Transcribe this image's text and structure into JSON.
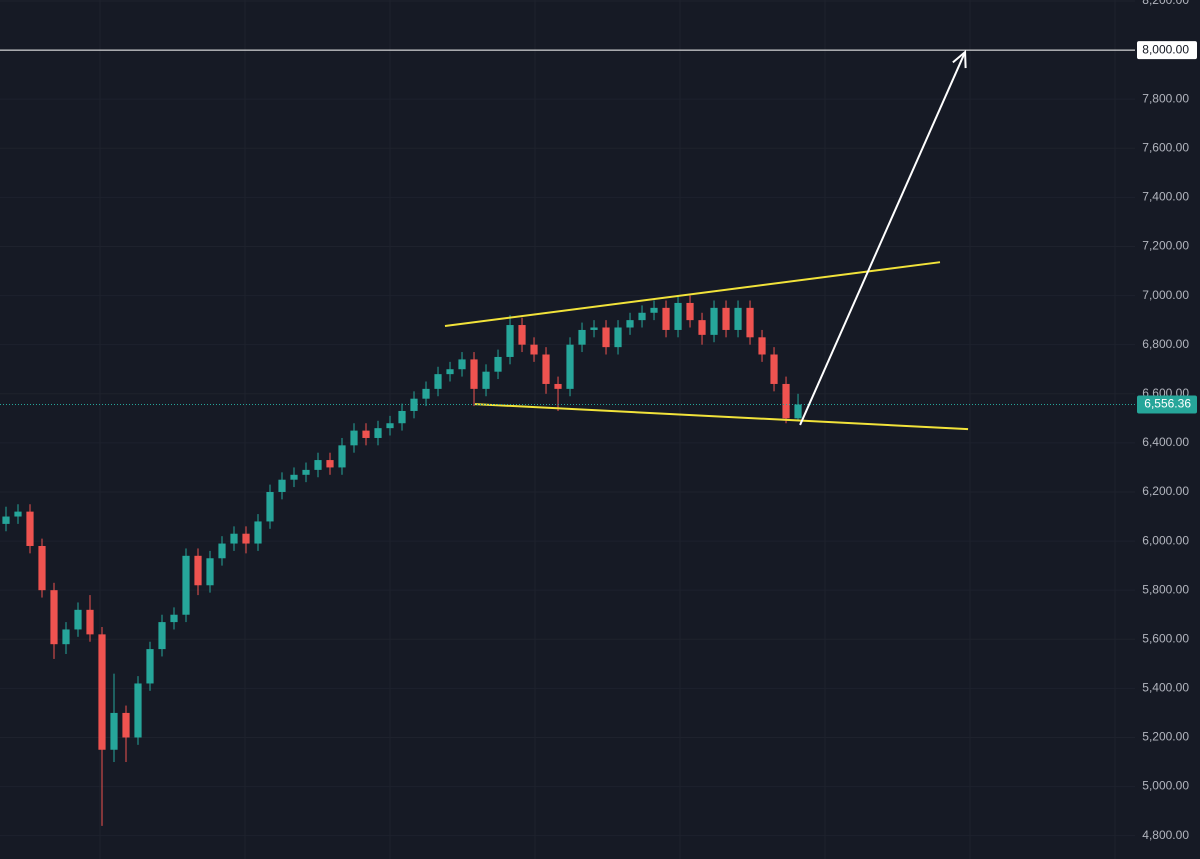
{
  "chart_data": {
    "type": "candlestick",
    "open": [
      6070,
      6100,
      6120,
      5980,
      5800,
      5580,
      5640,
      5720,
      5620,
      5150,
      5300,
      5200,
      5420,
      5560,
      5670,
      5700,
      5940,
      5820,
      5930,
      5990,
      6030,
      5990,
      6080,
      6200,
      6250,
      6270,
      6290,
      6330,
      6300,
      6390,
      6450,
      6420,
      6460,
      6480,
      6530,
      6580,
      6620,
      6680,
      6700,
      6740,
      6620,
      6690,
      6750,
      6880,
      6800,
      6760,
      6640,
      6620,
      6800,
      6860,
      6870,
      6790,
      6870,
      6900,
      6930,
      6950,
      6860,
      6970,
      6900,
      6840,
      6950,
      6860,
      6950,
      6830,
      6760,
      6640,
      6500
    ],
    "high": [
      6140,
      6150,
      6150,
      6010,
      5830,
      5670,
      5750,
      5780,
      5650,
      5460,
      5330,
      5450,
      5590,
      5700,
      5730,
      5970,
      5970,
      5960,
      6020,
      6060,
      6060,
      6110,
      6230,
      6280,
      6300,
      6320,
      6360,
      6360,
      6420,
      6480,
      6480,
      6490,
      6510,
      6560,
      6610,
      6650,
      6710,
      6730,
      6770,
      6770,
      6720,
      6780,
      6920,
      6910,
      6830,
      6790,
      6670,
      6830,
      6890,
      6900,
      6900,
      6900,
      6930,
      6960,
      6980,
      6980,
      7000,
      7000,
      6930,
      6980,
      6980,
      6980,
      6980,
      6860,
      6790,
      6670,
      6600
    ],
    "low": [
      6040,
      6070,
      5950,
      5770,
      5520,
      5540,
      5610,
      5590,
      4840,
      5100,
      5100,
      5170,
      5390,
      5530,
      5640,
      5670,
      5780,
      5790,
      5900,
      5960,
      5950,
      5960,
      6050,
      6170,
      6220,
      6240,
      6260,
      6270,
      6270,
      6360,
      6390,
      6390,
      6430,
      6450,
      6500,
      6550,
      6590,
      6650,
      6670,
      6550,
      6590,
      6660,
      6720,
      6770,
      6730,
      6600,
      6530,
      6590,
      6770,
      6830,
      6760,
      6760,
      6840,
      6870,
      6900,
      6830,
      6830,
      6870,
      6800,
      6810,
      6830,
      6830,
      6800,
      6730,
      6610,
      6480,
      6490
    ],
    "close": [
      6100,
      6120,
      5980,
      5800,
      5580,
      5640,
      5720,
      5620,
      5150,
      5300,
      5200,
      5420,
      5560,
      5670,
      5700,
      5940,
      5820,
      5930,
      5990,
      6030,
      5990,
      6080,
      6200,
      6250,
      6270,
      6290,
      6330,
      6300,
      6390,
      6450,
      6420,
      6460,
      6480,
      6530,
      6580,
      6620,
      6680,
      6700,
      6740,
      6620,
      6690,
      6750,
      6880,
      6800,
      6760,
      6640,
      6620,
      6800,
      6860,
      6870,
      6790,
      6870,
      6900,
      6930,
      6950,
      6860,
      6970,
      6900,
      6840,
      6950,
      6860,
      6950,
      6830,
      6760,
      6640,
      6500,
      6556.36
    ],
    "up_color": "#26a69a",
    "down_color": "#ef5350",
    "xlim": [
      -0.5,
      94.08
    ],
    "ylim": [
      4705,
      8204
    ],
    "yticks": [
      {
        "value": 4800,
        "label": "4,800.00"
      },
      {
        "value": 5000,
        "label": "5,000.00"
      },
      {
        "value": 5200,
        "label": "5,200.00"
      },
      {
        "value": 5400,
        "label": "5,400.00"
      },
      {
        "value": 5600,
        "label": "5,600.00"
      },
      {
        "value": 5800,
        "label": "5,800.00"
      },
      {
        "value": 6000,
        "label": "6,000.00"
      },
      {
        "value": 6200,
        "label": "6,200.00"
      },
      {
        "value": 6400,
        "label": "6,400.00"
      },
      {
        "value": 6600,
        "label": "6,600.00"
      },
      {
        "value": 6800,
        "label": "6,800.00"
      },
      {
        "value": 7000,
        "label": "7,000.00"
      },
      {
        "value": 7200,
        "label": "7,200.00"
      },
      {
        "value": 7400,
        "label": "7,400.00"
      },
      {
        "value": 7600,
        "label": "7,600.00"
      },
      {
        "value": 7800,
        "label": "7,800.00"
      },
      {
        "value": 8200,
        "label": "8,200.00"
      }
    ],
    "grid": true,
    "horizontal_line": {
      "value": 8000,
      "label": "8,000.00",
      "color": "#ffffff"
    },
    "price_line": {
      "value": 6556.36,
      "label": "6,556.36",
      "color": "#26a69a"
    },
    "trendlines": [
      {
        "x": [
          36.58,
          77.83
        ],
        "y": [
          6876,
          7136
        ],
        "color": "#f2e33a"
      },
      {
        "x": [
          39.08,
          80.17
        ],
        "y": [
          6558,
          6456
        ],
        "color": "#f2e33a"
      }
    ],
    "arrow": {
      "x": [
        66.17,
        79.92
      ],
      "y": [
        6473,
        7992
      ],
      "color": "#ffffff"
    }
  }
}
